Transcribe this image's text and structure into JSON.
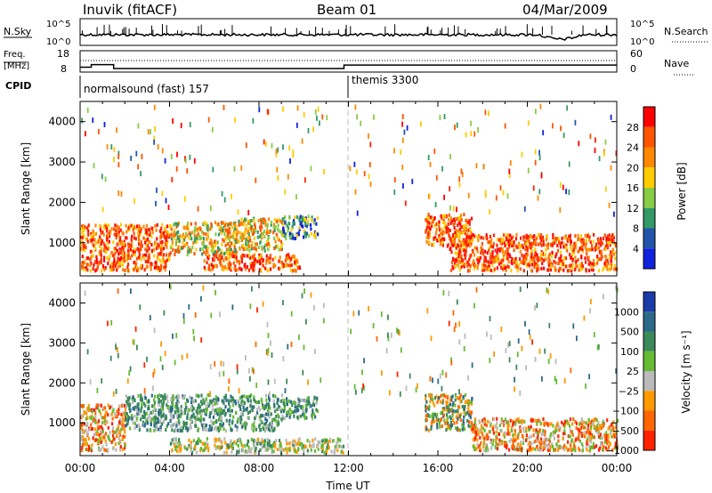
{
  "header": {
    "station": "Inuvik (fitACF)",
    "beam": "Beam 01",
    "date": "04/Mar/2009"
  },
  "top_panels": {
    "nsky_label": "N.Sky",
    "nsky_ticks": [
      "10^5",
      "10^0"
    ],
    "nsearch_label": "N.Search",
    "nsearch_ticks": [
      "10^5",
      "10^0"
    ],
    "freq_label": "Freq.",
    "freq_unit": "[MHz]",
    "freq_ticks": [
      "18",
      "8"
    ],
    "nave_label": "Nave",
    "nave_ticks": [
      "60",
      "0"
    ],
    "cpid_label": "CPID",
    "cpid_segments": [
      {
        "name": "normalsound (fast) 157",
        "start_hour": 0,
        "end_hour": 12
      },
      {
        "name": "themis 3300",
        "start_hour": 12,
        "end_hour": 24
      }
    ],
    "freq_steps": [
      {
        "start_hour": 0.0,
        "end_hour": 0.5,
        "mhz": 10.5
      },
      {
        "start_hour": 0.5,
        "end_hour": 1.5,
        "mhz": 11.8
      },
      {
        "start_hour": 1.5,
        "end_hour": 11.8,
        "mhz": 9.8
      },
      {
        "start_hour": 11.8,
        "end_hour": 24.0,
        "mhz": 11.6
      }
    ]
  },
  "chart_data": [
    {
      "type": "heatmap",
      "parameter": "Power",
      "ylabel": "Slant Range [km]",
      "colorbar_label": "Power [dB]",
      "colorbar_ticks": [
        "28",
        "24",
        "20",
        "16",
        "12",
        "8",
        "4"
      ],
      "colorbar_colors": [
        "#ff0000",
        "#ff5500",
        "#ff8800",
        "#ffcc00",
        "#88cc44",
        "#339966",
        "#2255aa",
        "#1122dd"
      ],
      "ylim": [
        180,
        4500
      ],
      "yticks": [
        "4000",
        "3000",
        "2000",
        "1000"
      ],
      "ytick_values": [
        4000,
        3000,
        2000,
        1000
      ],
      "xlim_hours": [
        0,
        24
      ],
      "echo_regions": [
        {
          "t0": 0.0,
          "t1": 4.0,
          "r0": 300,
          "r1": 1450,
          "level": "high"
        },
        {
          "t0": 4.0,
          "t1": 7.0,
          "r0": 700,
          "r1": 1500,
          "level": "mid"
        },
        {
          "t0": 5.5,
          "t1": 9.8,
          "r0": 300,
          "r1": 700,
          "level": "high"
        },
        {
          "t0": 7.0,
          "t1": 9.0,
          "r0": 800,
          "r1": 1600,
          "level": "mid"
        },
        {
          "t0": 9.0,
          "t1": 10.6,
          "r0": 1100,
          "r1": 1650,
          "level": "low"
        },
        {
          "t0": 15.4,
          "t1": 17.5,
          "r0": 900,
          "r1": 1700,
          "level": "high"
        },
        {
          "t0": 16.5,
          "t1": 24.0,
          "r0": 300,
          "r1": 1200,
          "level": "high"
        }
      ]
    },
    {
      "type": "heatmap",
      "parameter": "Velocity",
      "ylabel": "Slant Range [km]",
      "colorbar_label": "Velocity [m s⁻¹]",
      "colorbar_ticks": [
        "1000",
        "500",
        "100",
        "25",
        "−25",
        "−100",
        "−500",
        "−1000"
      ],
      "colorbar_colors": [
        "#1a3ca8",
        "#2c6a8a",
        "#3a8a5a",
        "#66bb33",
        "#bbbbbb",
        "#ff9900",
        "#ff6600",
        "#ff2200"
      ],
      "ylim": [
        180,
        4500
      ],
      "yticks": [
        "4000",
        "3000",
        "2000",
        "1000"
      ],
      "ytick_values": [
        4000,
        3000,
        2000,
        1000
      ],
      "xlim_hours": [
        0,
        24
      ],
      "xticks": [
        "00:00",
        "04:00",
        "08:00",
        "12:00",
        "16:00",
        "20:00",
        "00:00"
      ],
      "xlabel": "Time UT",
      "echo_regions": [
        {
          "t0": 0.0,
          "t1": 2.0,
          "r0": 300,
          "r1": 1450,
          "level": "neg"
        },
        {
          "t0": 2.0,
          "t1": 9.0,
          "r0": 800,
          "r1": 1700,
          "level": "pos"
        },
        {
          "t0": 9.0,
          "t1": 10.6,
          "r0": 1100,
          "r1": 1650,
          "level": "pos"
        },
        {
          "t0": 4.0,
          "t1": 11.8,
          "r0": 250,
          "r1": 600,
          "level": "zero"
        },
        {
          "t0": 15.4,
          "t1": 17.5,
          "r0": 800,
          "r1": 1700,
          "level": "mix"
        },
        {
          "t0": 17.5,
          "t1": 24.0,
          "r0": 300,
          "r1": 1100,
          "level": "neg"
        }
      ]
    }
  ]
}
